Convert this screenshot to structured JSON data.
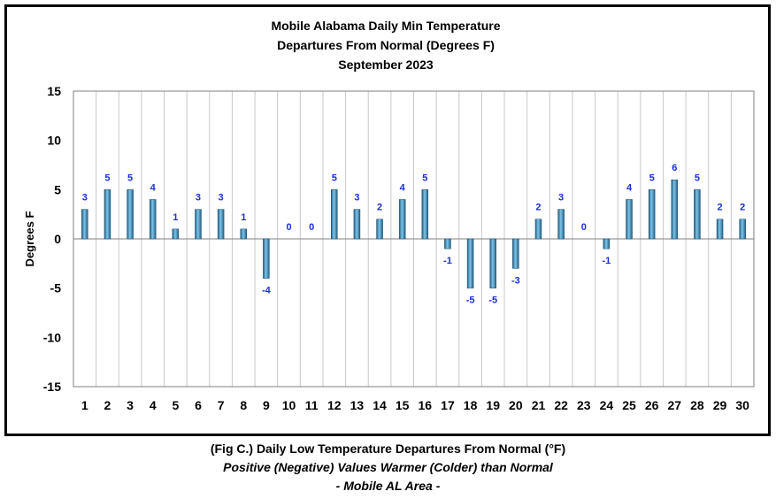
{
  "chart_data": {
    "type": "bar",
    "title": [
      "Mobile Alabama Daily Min Temperature",
      "Departures From Normal (Degrees F)",
      "September 2023"
    ],
    "xlabel": "",
    "ylabel": "Degrees F",
    "categories": [
      "1",
      "2",
      "3",
      "4",
      "5",
      "6",
      "7",
      "8",
      "9",
      "10",
      "11",
      "12",
      "13",
      "14",
      "15",
      "16",
      "17",
      "18",
      "19",
      "20",
      "21",
      "22",
      "23",
      "24",
      "25",
      "26",
      "27",
      "28",
      "29",
      "30"
    ],
    "values": [
      3,
      5,
      5,
      4,
      1,
      3,
      3,
      1,
      -4,
      0,
      0,
      5,
      3,
      2,
      4,
      5,
      -1,
      -5,
      -5,
      -3,
      2,
      3,
      0,
      -1,
      4,
      5,
      6,
      5,
      2,
      2
    ],
    "ylim": [
      -15,
      15
    ],
    "yticks": [
      15,
      10,
      5,
      0,
      -5,
      -10,
      -15
    ],
    "grid": "vertical",
    "legend": "none",
    "bar_color": "#3a8fc0",
    "label_color": "#1a2fd6"
  },
  "caption": {
    "line1": "(Fig C.) Daily Low Temperature Departures From Normal (°F)",
    "line2": "Positive (Negative) Values Warmer (Colder) than Normal",
    "line3": "- Mobile AL Area -"
  }
}
